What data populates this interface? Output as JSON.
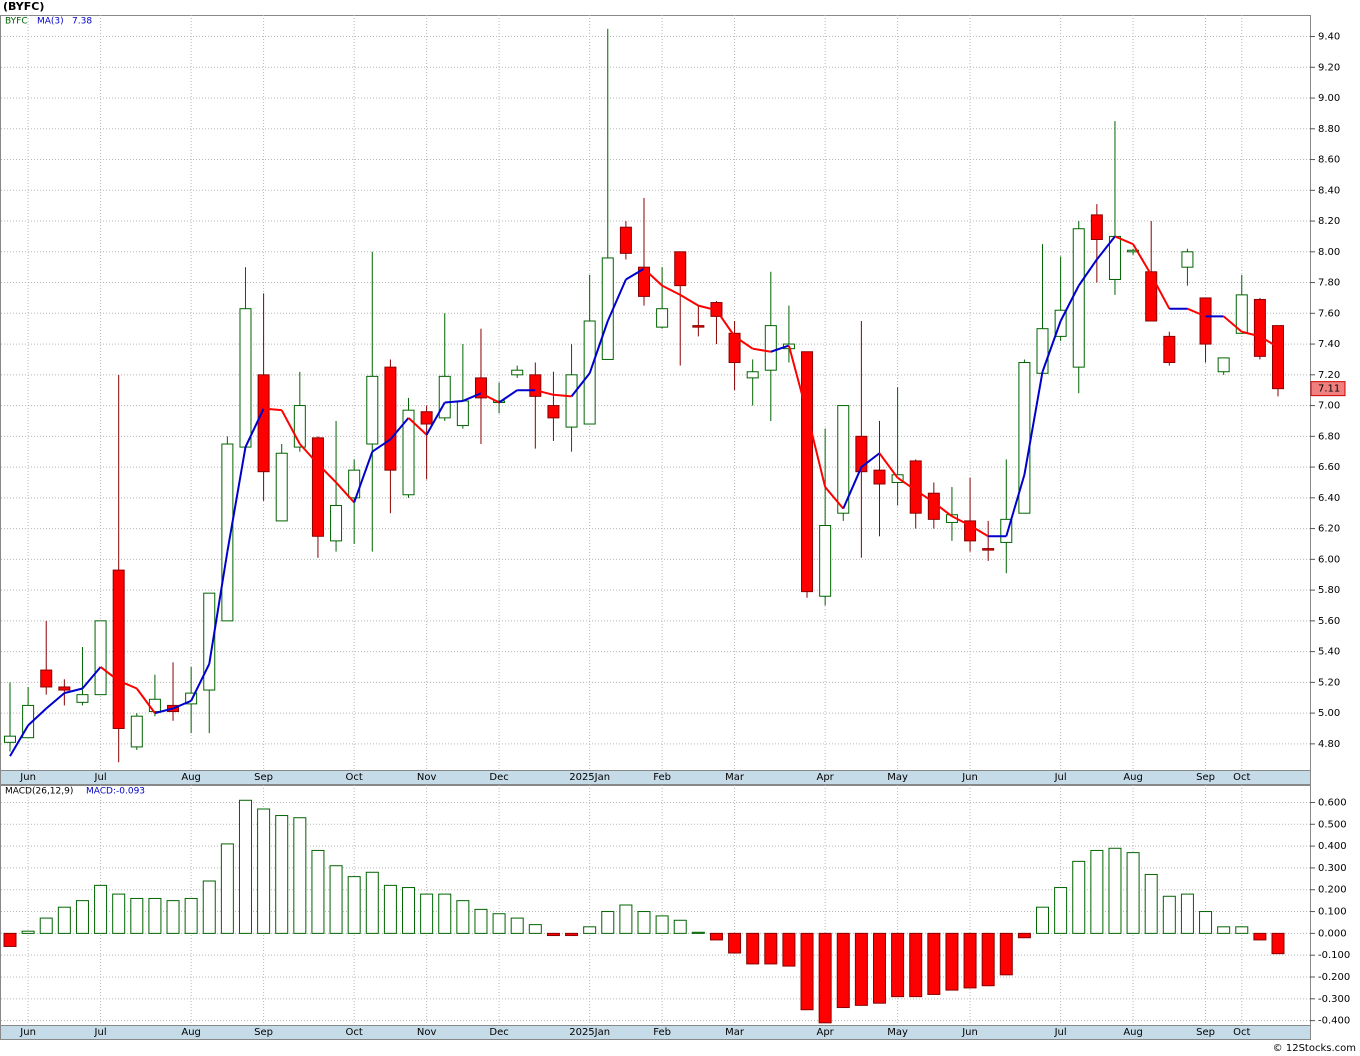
{
  "chart_data": [
    {
      "type": "candlestick",
      "title": "(BYFC)",
      "symbol": "BYFC",
      "categories": [
        null,
        "Jun",
        null,
        null,
        null,
        "Jul",
        null,
        null,
        null,
        null,
        "Aug",
        null,
        null,
        null,
        "Sep",
        null,
        null,
        null,
        null,
        "Oct",
        null,
        null,
        null,
        "Nov",
        null,
        null,
        null,
        "Dec",
        null,
        null,
        null,
        null,
        "2025Jan",
        null,
        null,
        null,
        "Feb",
        null,
        null,
        null,
        "Mar",
        null,
        null,
        null,
        null,
        "Apr",
        null,
        null,
        null,
        "May",
        null,
        null,
        null,
        "Jun",
        null,
        null,
        null,
        null,
        "Jul",
        null,
        null,
        null,
        "Aug",
        null,
        null,
        null,
        "Sep",
        null,
        "Oct",
        null,
        null
      ],
      "open": [
        4.81,
        4.84,
        5.28,
        5.17,
        5.07,
        5.12,
        5.93,
        4.78,
        5.01,
        5.05,
        5.06,
        5.15,
        5.6,
        6.73,
        7.2,
        6.25,
        6.73,
        6.79,
        6.12,
        6.4,
        6.75,
        7.25,
        6.42,
        6.96,
        6.92,
        6.87,
        7.18,
        7.02,
        7.2,
        7.2,
        7.0,
        6.86,
        6.88,
        7.3,
        8.16,
        7.9,
        7.51,
        8.0,
        7.52,
        7.67,
        7.47,
        7.18,
        7.23,
        7.37,
        7.35,
        5.76,
        6.3,
        6.8,
        6.58,
        6.5,
        6.64,
        6.43,
        6.24,
        6.25,
        6.07,
        6.11,
        6.3,
        7.21,
        7.45,
        7.25,
        8.24,
        7.82,
        8.0,
        7.87,
        7.45,
        7.9,
        7.7,
        7.22,
        7.47,
        7.69,
        7.52
      ],
      "high": [
        5.2,
        5.17,
        5.6,
        5.22,
        5.43,
        5.6,
        7.2,
        5.0,
        5.25,
        5.33,
        5.3,
        5.78,
        6.8,
        7.9,
        7.73,
        6.75,
        7.22,
        6.8,
        6.9,
        6.65,
        8.0,
        7.3,
        7.05,
        7.0,
        7.6,
        7.4,
        7.5,
        7.15,
        7.26,
        7.28,
        7.22,
        7.4,
        7.85,
        9.45,
        8.2,
        8.35,
        7.9,
        8.0,
        7.65,
        7.68,
        7.55,
        7.3,
        7.87,
        7.65,
        7.35,
        6.85,
        7.0,
        7.55,
        6.9,
        7.12,
        6.65,
        6.5,
        6.47,
        6.53,
        6.25,
        6.65,
        7.3,
        8.05,
        7.97,
        8.2,
        8.31,
        8.85,
        8.02,
        8.2,
        7.48,
        8.02,
        7.7,
        7.31,
        7.85,
        7.7,
        7.52
      ],
      "low": [
        4.75,
        4.84,
        5.12,
        5.05,
        5.05,
        5.12,
        4.68,
        4.76,
        4.98,
        4.95,
        4.87,
        4.87,
        5.6,
        6.73,
        6.38,
        6.25,
        6.7,
        6.01,
        6.05,
        6.1,
        6.05,
        6.3,
        6.4,
        6.52,
        6.9,
        6.85,
        6.75,
        6.95,
        7.18,
        6.72,
        6.77,
        6.7,
        6.88,
        7.3,
        7.95,
        7.65,
        7.5,
        7.26,
        7.45,
        7.4,
        7.1,
        7.0,
        6.9,
        7.28,
        5.75,
        5.7,
        6.25,
        6.01,
        6.15,
        6.35,
        6.2,
        6.2,
        6.12,
        6.05,
        5.99,
        5.91,
        6.3,
        7.2,
        7.42,
        7.08,
        7.8,
        7.72,
        7.98,
        7.55,
        7.26,
        7.78,
        7.28,
        7.2,
        7.47,
        7.3,
        7.06
      ],
      "close": [
        4.85,
        5.05,
        5.17,
        5.15,
        5.12,
        5.6,
        4.9,
        4.98,
        5.09,
        5.01,
        5.13,
        5.78,
        6.75,
        7.63,
        6.57,
        6.69,
        7.0,
        6.15,
        6.35,
        6.58,
        7.19,
        6.58,
        6.97,
        6.88,
        7.19,
        7.03,
        7.05,
        7.03,
        7.23,
        7.06,
        6.92,
        7.2,
        7.55,
        7.96,
        7.99,
        7.71,
        7.63,
        7.78,
        7.51,
        7.58,
        7.28,
        7.22,
        7.52,
        7.4,
        5.79,
        6.22,
        7.0,
        6.57,
        6.49,
        6.55,
        6.3,
        6.26,
        6.29,
        6.12,
        6.06,
        6.26,
        7.28,
        7.5,
        7.62,
        8.15,
        8.08,
        8.1,
        8.01,
        7.55,
        7.28,
        8.0,
        7.4,
        7.31,
        7.72,
        7.32,
        7.11
      ],
      "up_color": "#006400",
      "down_color": "#ff0000",
      "ma": {
        "name": "MA(3)",
        "up_color": "#0000cc",
        "down_color": "#ff0000",
        "values": [
          4.72,
          4.92,
          5.03,
          5.13,
          5.16,
          5.3,
          5.21,
          5.16,
          5.0,
          5.03,
          5.08,
          5.32,
          6.05,
          6.73,
          6.98,
          6.97,
          6.75,
          6.62,
          6.5,
          6.37,
          6.7,
          6.78,
          6.92,
          6.81,
          7.02,
          7.03,
          7.08,
          7.02,
          7.1,
          7.1,
          7.07,
          7.06,
          7.21,
          7.55,
          7.82,
          7.89,
          7.78,
          7.72,
          7.65,
          7.62,
          7.45,
          7.37,
          7.35,
          7.39,
          6.95,
          6.47,
          6.33,
          6.6,
          6.69,
          6.53,
          6.45,
          6.37,
          6.28,
          6.22,
          6.15,
          6.15,
          6.55,
          7.22,
          7.55,
          7.78,
          7.95,
          8.1,
          8.05,
          7.85,
          7.63,
          7.63,
          7.58,
          7.58,
          7.48,
          7.45,
          7.38
        ]
      },
      "ylim": [
        4.63,
        9.54
      ],
      "yticks": [
        {
          "value": 4.8,
          "label": "4.80"
        },
        {
          "value": 5.0,
          "label": "5.00"
        },
        {
          "value": 5.2,
          "label": "5.20"
        },
        {
          "value": 5.4,
          "label": "5.40"
        },
        {
          "value": 5.6,
          "label": "5.60"
        },
        {
          "value": 5.8,
          "label": "5.80"
        },
        {
          "value": 6.0,
          "label": "6.00"
        },
        {
          "value": 6.2,
          "label": "6.20"
        },
        {
          "value": 6.4,
          "label": "6.40"
        },
        {
          "value": 6.6,
          "label": "6.60"
        },
        {
          "value": 6.8,
          "label": "6.80"
        },
        {
          "value": 7.0,
          "label": "7.00"
        },
        {
          "value": 7.2,
          "label": "7.20"
        },
        {
          "value": 7.4,
          "label": "7.40"
        },
        {
          "value": 7.6,
          "label": "7.60"
        },
        {
          "value": 7.8,
          "label": "7.80"
        },
        {
          "value": 8.0,
          "label": "8.00"
        },
        {
          "value": 8.2,
          "label": "8.20"
        },
        {
          "value": 8.4,
          "label": "8.40"
        },
        {
          "value": 8.6,
          "label": "8.60"
        },
        {
          "value": 8.8,
          "label": "8.80"
        },
        {
          "value": 9.0,
          "label": "9.00"
        },
        {
          "value": 9.2,
          "label": "9.20"
        },
        {
          "value": 9.4,
          "label": "9.40"
        }
      ],
      "grid": true
    },
    {
      "type": "bar",
      "title": "MACD(26,12,9)",
      "value_label": "MACD:-0.093",
      "categories": [
        null,
        "Jun",
        null,
        null,
        null,
        "Jul",
        null,
        null,
        null,
        null,
        "Aug",
        null,
        null,
        null,
        "Sep",
        null,
        null,
        null,
        null,
        "Oct",
        null,
        null,
        null,
        "Nov",
        null,
        null,
        null,
        "Dec",
        null,
        null,
        null,
        null,
        "2025Jan",
        null,
        null,
        null,
        "Feb",
        null,
        null,
        null,
        "Mar",
        null,
        null,
        null,
        null,
        "Apr",
        null,
        null,
        null,
        "May",
        null,
        null,
        null,
        "Jun",
        null,
        null,
        null,
        null,
        "Jul",
        null,
        null,
        null,
        "Aug",
        null,
        null,
        null,
        "Sep",
        null,
        "Oct",
        null,
        null
      ],
      "values": [
        -0.06,
        0.01,
        0.07,
        0.12,
        0.15,
        0.22,
        0.18,
        0.16,
        0.16,
        0.15,
        0.16,
        0.24,
        0.41,
        0.61,
        0.57,
        0.54,
        0.53,
        0.38,
        0.31,
        0.26,
        0.28,
        0.22,
        0.21,
        0.18,
        0.18,
        0.15,
        0.11,
        0.09,
        0.07,
        0.04,
        -0.01,
        -0.01,
        0.03,
        0.1,
        0.13,
        0.1,
        0.08,
        0.06,
        0.005,
        -0.03,
        -0.09,
        -0.14,
        -0.14,
        -0.15,
        -0.35,
        -0.41,
        -0.34,
        -0.33,
        -0.32,
        -0.29,
        -0.29,
        -0.28,
        -0.26,
        -0.25,
        -0.24,
        -0.19,
        -0.02,
        0.12,
        0.21,
        0.33,
        0.38,
        0.39,
        0.37,
        0.27,
        0.17,
        0.18,
        0.1,
        0.03,
        0.03,
        -0.03,
        -0.093
      ],
      "up_color": "#006400",
      "down_color": "#ff0000",
      "ylim": [
        -0.42,
        0.68
      ],
      "yticks": [
        {
          "value": -0.4,
          "label": "-0.400"
        },
        {
          "value": -0.3,
          "label": "-0.300"
        },
        {
          "value": -0.2,
          "label": "-0.200"
        },
        {
          "value": -0.1,
          "label": "-0.100"
        },
        {
          "value": 0,
          "label": "0.000"
        },
        {
          "value": 0.1,
          "label": "0.100"
        },
        {
          "value": 0.2,
          "label": "0.200"
        },
        {
          "value": 0.3,
          "label": "0.300"
        },
        {
          "value": 0.4,
          "label": "0.400"
        },
        {
          "value": 0.5,
          "label": "0.500"
        },
        {
          "value": 0.6,
          "label": "0.600"
        }
      ],
      "grid": true
    }
  ],
  "footer": "© 12Stocks.com"
}
